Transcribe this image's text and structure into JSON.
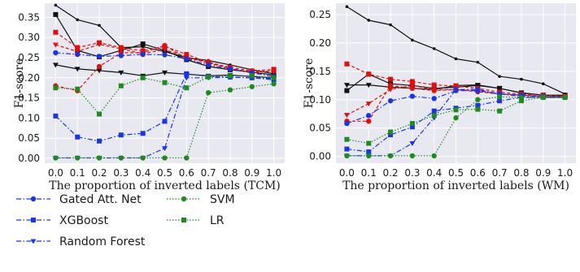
{
  "chart_data": [
    {
      "type": "line",
      "xlabel": "The proportion of inverted labels (TCM)",
      "ylabel": "F1-score",
      "x": [
        0.0,
        0.1,
        0.2,
        0.3,
        0.4,
        0.5,
        0.6,
        0.7,
        0.8,
        0.9,
        1.0
      ],
      "x_tick_labels": [
        "0.0",
        "0.1",
        "0.2",
        "0.3",
        "0.4",
        "0.5",
        "0.6",
        "0.7",
        "0.8",
        "0.9",
        "1.0"
      ],
      "y_ticks": [
        0.0,
        0.05,
        0.1,
        0.15,
        0.2,
        0.25,
        0.3,
        0.35
      ],
      "y_tick_labels": [
        "0.00",
        "0.05",
        "0.10",
        "0.15",
        "0.20",
        "0.25",
        "0.30",
        "0.35"
      ],
      "ylim": [
        -0.012,
        0.385
      ],
      "grid": true,
      "series": [
        {
          "color": "#111111",
          "style": "solid",
          "marker": "circle-small",
          "values": [
            0.38,
            0.344,
            0.33,
            0.275,
            0.277,
            0.265,
            0.25,
            0.243,
            0.232,
            0.22,
            0.21
          ]
        },
        {
          "color": "#111111",
          "style": "solid",
          "marker": "square",
          "values": [
            0.357,
            0.268,
            0.252,
            0.268,
            0.284,
            0.268,
            0.245,
            0.228,
            0.22,
            0.214,
            0.207
          ]
        },
        {
          "color": "#111111",
          "style": "solid",
          "marker": "triangle-down",
          "values": [
            0.232,
            0.222,
            0.218,
            0.213,
            0.205,
            0.213,
            0.209,
            0.205,
            0.207,
            0.203,
            0.2
          ]
        },
        {
          "color": "#e01010",
          "style": "dashed",
          "marker": "square",
          "values": [
            0.313,
            0.275,
            0.287,
            0.275,
            0.267,
            0.278,
            0.258,
            0.238,
            0.226,
            0.217,
            0.221
          ]
        },
        {
          "color": "#e01010",
          "style": "dashed",
          "marker": "triangle-down",
          "values": [
            0.282,
            0.265,
            0.283,
            0.272,
            0.26,
            0.27,
            0.252,
            0.236,
            0.224,
            0.212,
            0.218
          ]
        },
        {
          "color": "#e01010",
          "style": "dashed",
          "marker": "circle",
          "values": [
            0.18,
            0.168,
            0.228,
            0.262,
            0.262,
            0.28,
            0.248,
            0.24,
            0.222,
            0.215,
            0.217
          ]
        },
        {
          "name": "Gated Att. Net",
          "color": "#1a34e6",
          "style": "dashdot",
          "marker": "circle",
          "values": [
            0.262,
            0.258,
            0.253,
            0.255,
            0.258,
            0.257,
            0.247,
            0.232,
            0.222,
            0.212,
            0.203
          ]
        },
        {
          "name": "XGBoost",
          "color": "#1a34e6",
          "style": "dashdot",
          "marker": "square",
          "values": [
            0.105,
            0.053,
            0.043,
            0.058,
            0.062,
            0.092,
            0.21,
            0.203,
            0.202,
            0.2,
            0.195
          ]
        },
        {
          "name": "Random Forest",
          "color": "#1a34e6",
          "style": "dashdot",
          "marker": "triangle-down",
          "values": [
            0.001,
            0.001,
            0.001,
            0.001,
            0.001,
            0.025,
            0.2,
            0.2,
            0.201,
            0.2,
            0.198
          ]
        },
        {
          "name": "SVM",
          "color": "#1f8a1f",
          "style": "dotted",
          "marker": "circle",
          "values": [
            0.001,
            0.001,
            0.001,
            0.001,
            0.001,
            0.001,
            0.001,
            0.163,
            0.17,
            0.178,
            0.185
          ]
        },
        {
          "name": "LR",
          "color": "#1f8a1f",
          "style": "dotted",
          "marker": "square",
          "values": [
            0.175,
            0.172,
            0.11,
            0.18,
            0.2,
            0.188,
            0.175,
            0.202,
            0.205,
            0.205,
            0.2
          ]
        }
      ]
    },
    {
      "type": "line",
      "xlabel": "The proportion of inverted labels (WM)",
      "ylabel": "F1-score",
      "x": [
        0.0,
        0.1,
        0.2,
        0.3,
        0.4,
        0.5,
        0.6,
        0.7,
        0.8,
        0.9,
        1.0
      ],
      "x_tick_labels": [
        "0.0",
        "0.1",
        "0.2",
        "0.3",
        "0.4",
        "0.5",
        "0.6",
        "0.7",
        "0.8",
        "0.9",
        "1.0"
      ],
      "y_ticks": [
        0.0,
        0.05,
        0.1,
        0.15,
        0.2,
        0.25
      ],
      "y_tick_labels": [
        "0.00",
        "0.05",
        "0.10",
        "0.15",
        "0.20",
        "0.25"
      ],
      "ylim": [
        -0.012,
        0.27
      ],
      "grid": true,
      "series": [
        {
          "color": "#111111",
          "style": "solid",
          "marker": "circle-small",
          "values": [
            0.264,
            0.24,
            0.232,
            0.205,
            0.19,
            0.172,
            0.166,
            0.141,
            0.136,
            0.128,
            0.11
          ]
        },
        {
          "color": "#111111",
          "style": "solid",
          "marker": "square",
          "values": [
            0.116,
            0.145,
            0.128,
            0.125,
            0.12,
            0.122,
            0.125,
            0.12,
            0.112,
            0.108,
            0.108
          ]
        },
        {
          "color": "#111111",
          "style": "solid",
          "marker": "triangle-down",
          "values": [
            0.126,
            0.126,
            0.122,
            0.12,
            0.118,
            0.125,
            0.126,
            0.12,
            0.112,
            0.108,
            0.106
          ]
        },
        {
          "color": "#e01010",
          "style": "dashed",
          "marker": "square",
          "values": [
            0.163,
            0.145,
            0.136,
            0.132,
            0.126,
            0.124,
            0.12,
            0.113,
            0.11,
            0.108,
            0.106
          ]
        },
        {
          "color": "#e01010",
          "style": "dashed",
          "marker": "triangle-down",
          "values": [
            0.073,
            0.093,
            0.118,
            0.125,
            0.118,
            0.118,
            0.116,
            0.11,
            0.108,
            0.106,
            0.104
          ]
        },
        {
          "color": "#e01010",
          "style": "dashed",
          "marker": "circle",
          "values": [
            0.062,
            0.062,
            0.125,
            0.12,
            0.116,
            0.118,
            0.114,
            0.11,
            0.108,
            0.106,
            0.104
          ]
        },
        {
          "name": "Gated Att. Net",
          "color": "#1a34e6",
          "style": "dashdot",
          "marker": "circle",
          "values": [
            0.058,
            0.072,
            0.098,
            0.106,
            0.102,
            0.116,
            0.116,
            0.11,
            0.108,
            0.106,
            0.104
          ]
        },
        {
          "name": "XGBoost",
          "color": "#1a34e6",
          "style": "dashdot",
          "marker": "square",
          "values": [
            0.013,
            0.008,
            0.038,
            0.052,
            0.08,
            0.085,
            0.09,
            0.098,
            0.104,
            0.104,
            0.104
          ]
        },
        {
          "name": "Random Forest",
          "color": "#1a34e6",
          "style": "dashdot",
          "marker": "triangle-down",
          "values": [
            0.001,
            0.001,
            0.001,
            0.023,
            0.068,
            0.118,
            0.118,
            0.11,
            0.106,
            0.104,
            0.104
          ]
        },
        {
          "name": "SVM",
          "color": "#1f8a1f",
          "style": "dotted",
          "marker": "circle",
          "values": [
            0.001,
            0.001,
            0.001,
            0.001,
            0.001,
            0.068,
            0.1,
            0.105,
            0.104,
            0.104,
            0.104
          ]
        },
        {
          "name": "LR",
          "color": "#1f8a1f",
          "style": "dotted",
          "marker": "square",
          "values": [
            0.03,
            0.023,
            0.043,
            0.058,
            0.072,
            0.082,
            0.083,
            0.08,
            0.098,
            0.104,
            0.104
          ]
        }
      ]
    }
  ],
  "legend": {
    "placement": "bottom-left",
    "items": [
      {
        "label": "Gated Att. Net",
        "color": "#1a34e6",
        "style": "dashdot",
        "marker": "circle"
      },
      {
        "label": "XGBoost",
        "color": "#1a34e6",
        "style": "dashdot",
        "marker": "square"
      },
      {
        "label": "Random Forest",
        "color": "#1a34e6",
        "style": "dashdot",
        "marker": "triangle-down"
      },
      {
        "label": "SVM",
        "color": "#1f8a1f",
        "style": "dotted",
        "marker": "circle"
      },
      {
        "label": "LR",
        "color": "#1f8a1f",
        "style": "dotted",
        "marker": "square"
      }
    ]
  },
  "colors": {
    "plot_background": "#e8e8f0",
    "grid": "#ffffff"
  }
}
